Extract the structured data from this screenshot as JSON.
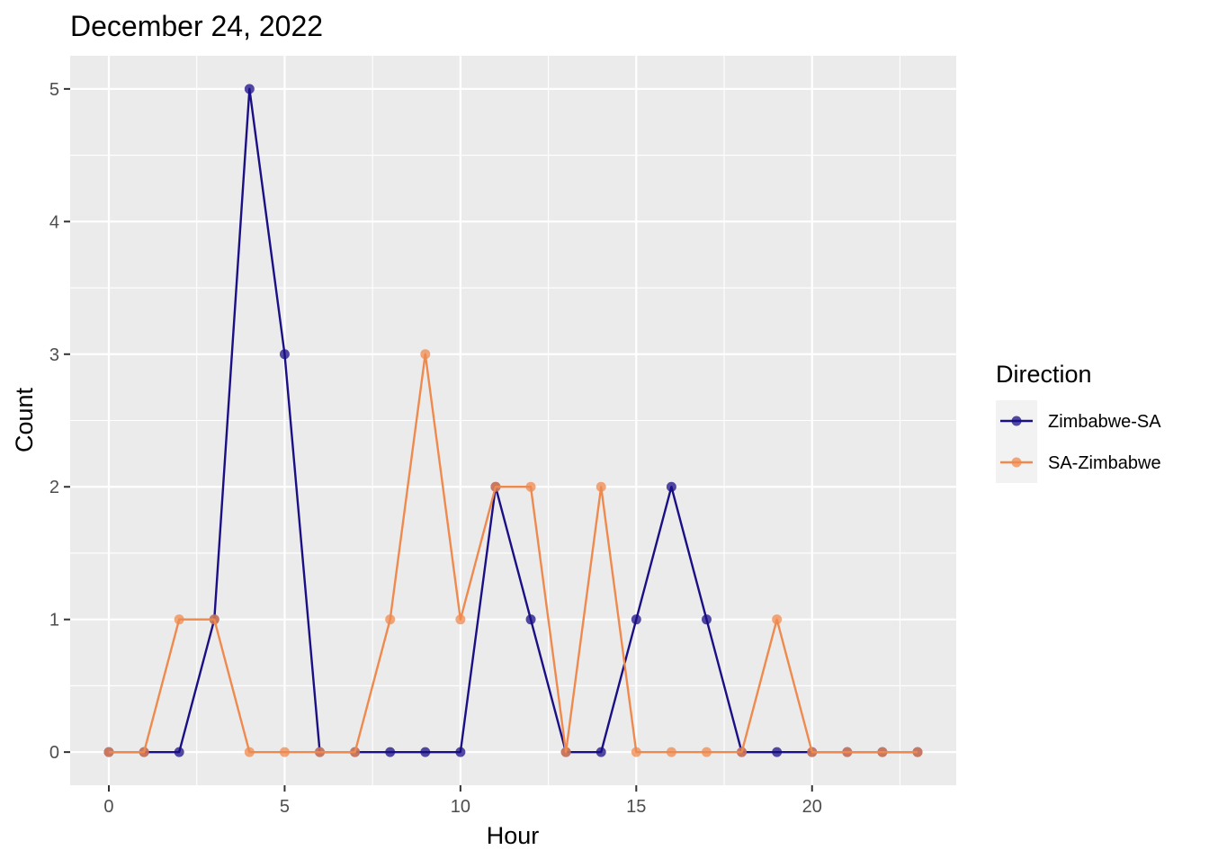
{
  "chart_data": {
    "type": "line",
    "title": "December 24, 2022",
    "xlabel": "Hour",
    "ylabel": "Count",
    "xlim": [
      -1.1,
      24.1
    ],
    "ylim": [
      -0.25,
      5.25
    ],
    "x_ticks": [
      0,
      5,
      10,
      15,
      20
    ],
    "y_ticks": [
      0,
      1,
      2,
      3,
      4,
      5
    ],
    "grid": true,
    "legend": {
      "title": "Direction",
      "position": "right"
    },
    "x": [
      0,
      1,
      2,
      3,
      4,
      5,
      6,
      7,
      8,
      9,
      10,
      11,
      12,
      13,
      14,
      15,
      16,
      17,
      18,
      19,
      20,
      21,
      22,
      23
    ],
    "series": [
      {
        "name": "Zimbabwe-SA",
        "color": "#1a0f85",
        "values": [
          0,
          0,
          0,
          1,
          5,
          3,
          0,
          0,
          0,
          0,
          0,
          2,
          1,
          0,
          0,
          1,
          2,
          1,
          0,
          0,
          0,
          0,
          0,
          0
        ]
      },
      {
        "name": "SA-Zimbabwe",
        "color": "#ef8a4f",
        "values": [
          0,
          0,
          1,
          1,
          0,
          0,
          0,
          0,
          1,
          3,
          1,
          2,
          2,
          0,
          2,
          0,
          0,
          0,
          0,
          1,
          0,
          0,
          0,
          0
        ]
      }
    ],
    "colors": {
      "panel": "#ebebeb",
      "grid": "#ffffff",
      "tick_text": "#4d4d4d"
    }
  }
}
